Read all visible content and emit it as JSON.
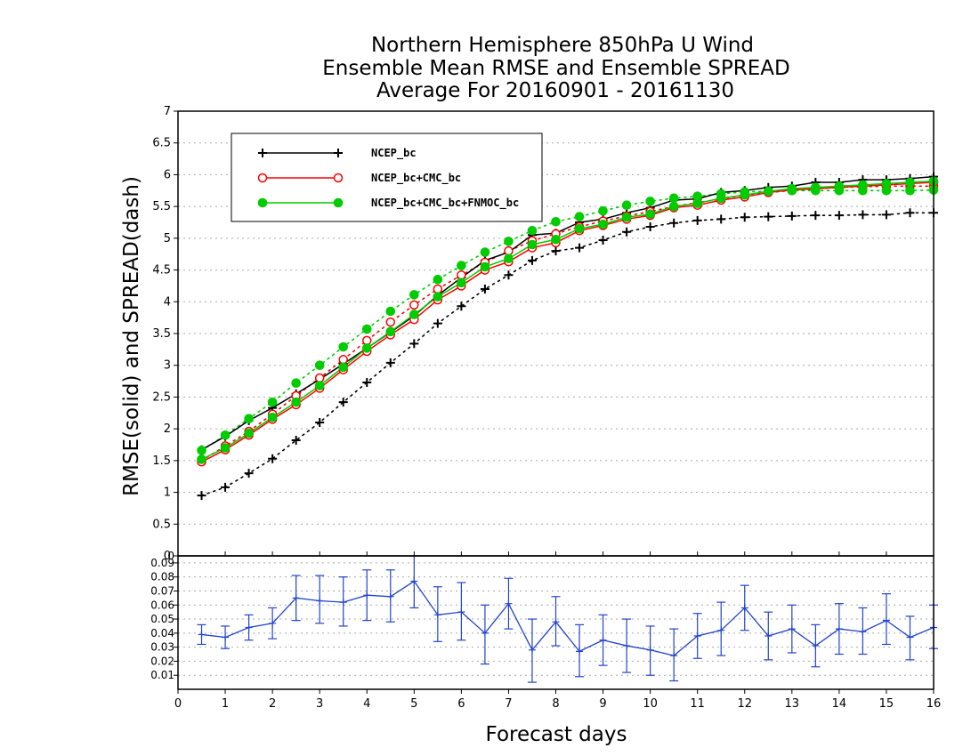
{
  "chart_data": [
    {
      "type": "line",
      "title": [
        "Northern Hemisphere 850hPa U Wind",
        "Ensemble Mean RMSE and Ensemble SPREAD",
        "Average For 20160901 - 20161130"
      ],
      "xlabel": "Forecast days",
      "ylabel": "RMSE(solid)  and  SPREAD(dash)",
      "xlim": [
        0,
        16
      ],
      "ylim": [
        0,
        7
      ],
      "xticks": [
        0,
        1,
        2,
        3,
        4,
        5,
        6,
        7,
        8,
        9,
        10,
        11,
        12,
        13,
        14,
        15,
        16
      ],
      "yticks": [
        0,
        0.5,
        1,
        1.5,
        2,
        2.5,
        3,
        3.5,
        4,
        4.5,
        5,
        5.5,
        6,
        6.5,
        7
      ],
      "grid": "horizontal dotted",
      "legend_position": "top-left",
      "x": [
        0.5,
        1,
        1.5,
        2,
        2.5,
        3,
        3.5,
        4,
        4.5,
        5,
        5.5,
        6,
        6.5,
        7,
        7.5,
        8,
        8.5,
        9,
        9.5,
        10,
        10.5,
        11,
        11.5,
        12,
        12.5,
        13,
        13.5,
        14,
        14.5,
        15,
        15.5,
        16
      ],
      "series": [
        {
          "name": "NCEP_bc",
          "color": "#000000",
          "marker": "plus",
          "rmse": [
            1.67,
            1.88,
            2.13,
            2.33,
            2.55,
            2.78,
            3.02,
            3.27,
            3.52,
            3.78,
            4.1,
            4.38,
            4.65,
            4.78,
            5.05,
            5.08,
            5.25,
            5.3,
            5.4,
            5.48,
            5.6,
            5.62,
            5.72,
            5.75,
            5.8,
            5.82,
            5.88,
            5.88,
            5.92,
            5.92,
            5.94,
            5.97
          ],
          "spread": [
            0.95,
            1.08,
            1.3,
            1.53,
            1.82,
            2.1,
            2.42,
            2.73,
            3.04,
            3.34,
            3.66,
            3.93,
            4.2,
            4.42,
            4.65,
            4.8,
            4.85,
            4.97,
            5.1,
            5.18,
            5.24,
            5.28,
            5.3,
            5.33,
            5.34,
            5.35,
            5.36,
            5.36,
            5.37,
            5.37,
            5.4,
            5.4
          ]
        },
        {
          "name": "NCEP_bc+CMC_bc",
          "color": "#ff0000",
          "marker": "open-circle",
          "rmse": [
            1.48,
            1.67,
            1.9,
            2.15,
            2.38,
            2.64,
            2.93,
            3.22,
            3.48,
            3.72,
            4.03,
            4.25,
            4.5,
            4.63,
            4.85,
            4.93,
            5.12,
            5.2,
            5.3,
            5.36,
            5.48,
            5.52,
            5.6,
            5.65,
            5.72,
            5.76,
            5.78,
            5.8,
            5.82,
            5.84,
            5.86,
            5.88
          ],
          "spread": [
            1.5,
            1.73,
            1.96,
            2.23,
            2.52,
            2.8,
            3.09,
            3.39,
            3.68,
            3.95,
            4.2,
            4.42,
            4.62,
            4.8,
            4.96,
            5.07,
            5.18,
            5.27,
            5.35,
            5.42,
            5.5,
            5.56,
            5.62,
            5.68,
            5.72,
            5.75,
            5.78,
            5.8,
            5.81,
            5.82,
            5.82,
            5.82
          ]
        },
        {
          "name": "NCEP_bc+CMC_bc+FNMOC_bc",
          "color": "#00cc00",
          "marker": "filled-circle",
          "rmse": [
            1.52,
            1.7,
            1.93,
            2.18,
            2.42,
            2.68,
            2.97,
            3.27,
            3.53,
            3.8,
            4.08,
            4.3,
            4.55,
            4.68,
            4.9,
            4.98,
            5.15,
            5.22,
            5.33,
            5.38,
            5.5,
            5.55,
            5.63,
            5.68,
            5.74,
            5.78,
            5.8,
            5.82,
            5.84,
            5.86,
            5.88,
            5.9
          ],
          "spread": [
            1.66,
            1.9,
            2.16,
            2.42,
            2.72,
            3.0,
            3.29,
            3.57,
            3.85,
            4.11,
            4.35,
            4.57,
            4.78,
            4.95,
            5.12,
            5.26,
            5.34,
            5.43,
            5.52,
            5.58,
            5.63,
            5.66,
            5.7,
            5.73,
            5.74,
            5.75,
            5.75,
            5.75,
            5.75,
            5.75,
            5.75,
            5.76
          ]
        }
      ]
    },
    {
      "type": "line",
      "xlim": [
        0,
        16
      ],
      "ylim": [
        0,
        0.095
      ],
      "yticks": [
        0.01,
        0.02,
        0.03,
        0.04,
        0.05,
        0.06,
        0.07,
        0.08,
        0.09
      ],
      "ytick_labels": [
        "0.01",
        "0.02",
        "0.03",
        "0.04",
        "0.05",
        "0.06",
        "0.07",
        "0.08",
        "0.09"
      ],
      "bottom_label": "0",
      "grid": "horizontal dotted",
      "color": "#2244cc",
      "error_bars": true,
      "x": [
        0.5,
        1,
        1.5,
        2,
        2.5,
        3,
        3.5,
        4,
        4.5,
        5,
        5.5,
        6,
        6.5,
        7,
        7.5,
        8,
        8.5,
        9,
        9.5,
        10,
        10.5,
        11,
        11.5,
        12,
        12.5,
        13,
        13.5,
        14,
        14.5,
        15,
        15.5,
        16
      ],
      "values": [
        0.039,
        0.037,
        0.044,
        0.047,
        0.065,
        0.063,
        0.062,
        0.067,
        0.066,
        0.077,
        0.053,
        0.055,
        0.04,
        0.061,
        0.028,
        0.048,
        0.027,
        0.035,
        0.031,
        0.028,
        0.024,
        0.038,
        0.042,
        0.058,
        0.038,
        0.043,
        0.031,
        0.043,
        0.041,
        0.049,
        0.037,
        0.044
      ],
      "error_low": [
        0.032,
        0.029,
        0.035,
        0.036,
        0.049,
        0.047,
        0.045,
        0.049,
        0.048,
        0.058,
        0.034,
        0.035,
        0.018,
        0.043,
        0.005,
        0.031,
        0.009,
        0.017,
        0.012,
        0.01,
        0.006,
        0.022,
        0.024,
        0.042,
        0.021,
        0.026,
        0.016,
        0.025,
        0.025,
        0.032,
        0.021,
        0.029
      ],
      "error_high": [
        0.046,
        0.045,
        0.053,
        0.058,
        0.081,
        0.081,
        0.08,
        0.085,
        0.085,
        0.095,
        0.073,
        0.076,
        0.06,
        0.079,
        0.05,
        0.066,
        0.046,
        0.053,
        0.05,
        0.045,
        0.043,
        0.054,
        0.062,
        0.074,
        0.055,
        0.06,
        0.046,
        0.061,
        0.058,
        0.068,
        0.052,
        0.06
      ]
    }
  ]
}
